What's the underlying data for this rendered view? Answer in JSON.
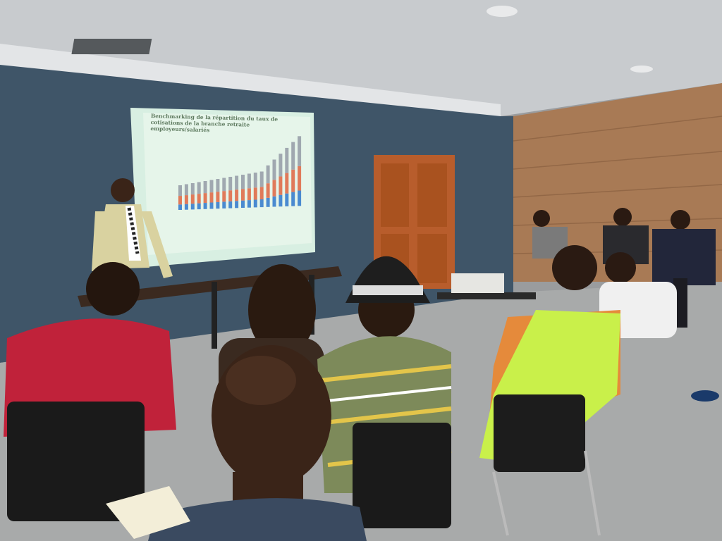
{
  "photo": {
    "scene": "presentation meeting room",
    "colors": {
      "wall": "#3f5568",
      "ceiling": "#c9cccf",
      "wood_panel": "#a87a55",
      "floor": "#a6a8a8",
      "screen": "#d8efe2",
      "door": "#b85d2c"
    }
  },
  "slide": {
    "title": "Benchmarking de la répartition du taux de cotisations de la branche retraite employeurs/salariés"
  }
}
